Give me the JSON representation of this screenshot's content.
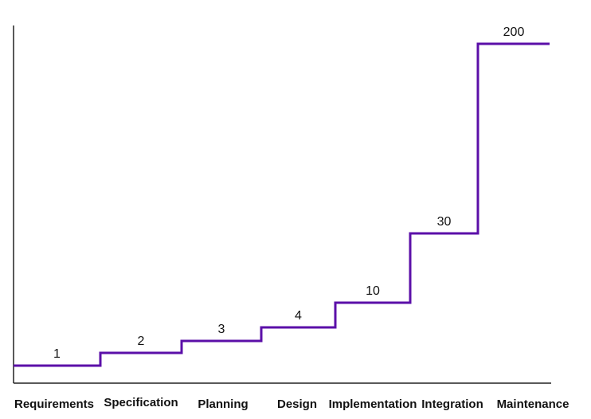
{
  "chart_data": {
    "type": "line",
    "step": true,
    "categories": [
      "Requirements",
      "Specification",
      "Planning",
      "Design",
      "Implementation",
      "Integration",
      "Maintenance"
    ],
    "values": [
      1,
      2,
      3,
      4,
      10,
      30,
      200
    ],
    "title": "",
    "xlabel": "",
    "ylabel": "",
    "grid": false,
    "legend": "none",
    "line_color": "#5B0FA8",
    "axis_color": "#222222"
  }
}
